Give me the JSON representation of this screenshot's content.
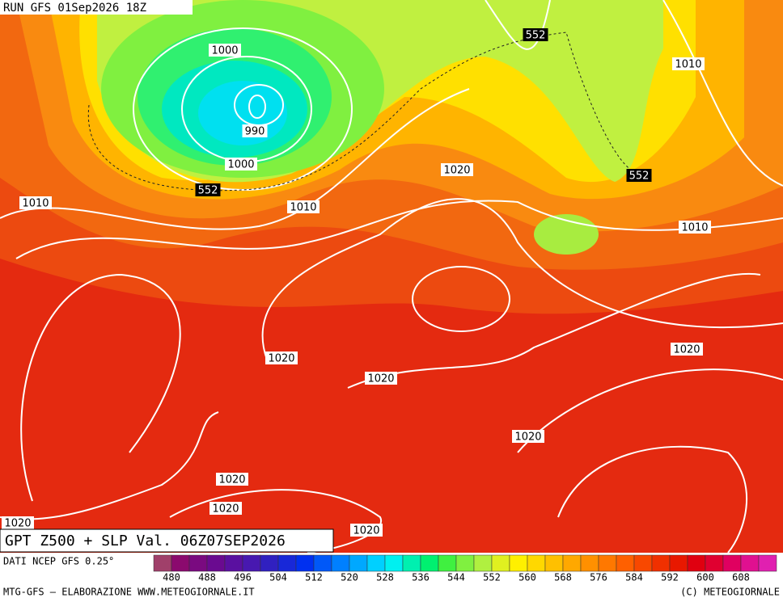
{
  "header": {
    "run": "RUN GFS 01Sep2026 18Z"
  },
  "map": {
    "title": "GPT Z500 + SLP Val. 06Z07SEP2026",
    "isobar_labels": [
      1000,
      990,
      1000,
      1010,
      1010,
      1010,
      1020,
      1010,
      1020,
      1020,
      1020,
      1020,
      1020,
      1020,
      1020,
      1020
    ],
    "height_labels": [
      552,
      552,
      552
    ]
  },
  "colorbar": {
    "source": "DATI NCEP GFS 0.25°",
    "colors": [
      "#a0406a",
      "#8b0a6e",
      "#7a0a80",
      "#6a0a90",
      "#5a10a0",
      "#4818b0",
      "#3020c0",
      "#1828d8",
      "#0030f0",
      "#0058f8",
      "#0080ff",
      "#00a8ff",
      "#00d0ff",
      "#00f0f0",
      "#00f0b0",
      "#00f070",
      "#40f040",
      "#80f040",
      "#b0f040",
      "#e0f020",
      "#fff000",
      "#ffd800",
      "#ffc000",
      "#ffa800",
      "#ff9000",
      "#ff7800",
      "#ff6000",
      "#f84800",
      "#f03000",
      "#e81800",
      "#e00010",
      "#e00030",
      "#e00060",
      "#e01090",
      "#e020b0"
    ],
    "ticks": [
      480,
      488,
      496,
      504,
      512,
      520,
      528,
      536,
      544,
      552,
      560,
      568,
      576,
      584,
      592,
      600,
      608
    ]
  },
  "footer": {
    "left": "MTG-GFS — ELABORAZIONE WWW.METEOGIORNALE.IT",
    "right": "(C) METEOGIORNALE"
  }
}
